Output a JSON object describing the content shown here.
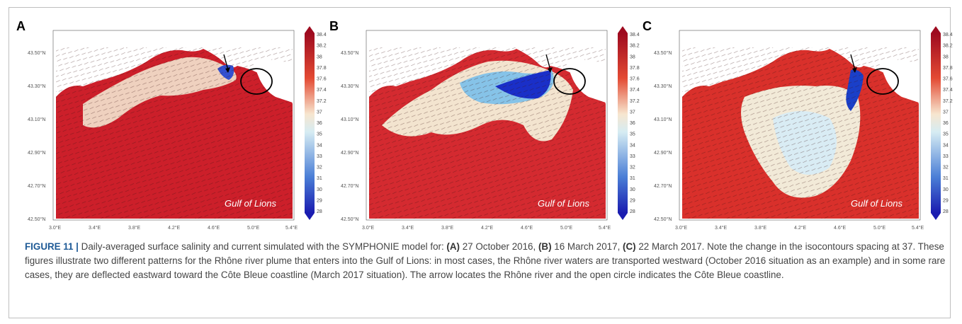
{
  "panels": [
    {
      "letter": "A",
      "region_label": "Gulf of Lions"
    },
    {
      "letter": "B",
      "region_label": "Gulf of Lions"
    },
    {
      "letter": "C",
      "region_label": "Gulf of Lions"
    }
  ],
  "lat_ticks": [
    "43.50°N",
    "43.30°N",
    "43.10°N",
    "42.90°N",
    "42.70°N",
    "42.50°N"
  ],
  "lon_ticks": [
    "3.0°E",
    "3.4°E",
    "3.8°E",
    "4.2°E",
    "4.6°E",
    "5.0°E",
    "5.4°E"
  ],
  "colorbar_ticks": [
    "38.4",
    "38.2",
    "38",
    "37.8",
    "37.6",
    "37.4",
    "37.2",
    "37",
    "36",
    "35",
    "34",
    "33",
    "32",
    "31",
    "30",
    "29",
    "28"
  ],
  "colors": {
    "saline": "#c8102e",
    "fresh": "#1030c0",
    "mid": "#f2e8d5",
    "caption_label": "#1e5a96"
  },
  "caption": {
    "label": "FIGURE 11 |",
    "s1": " Daily-averaged surface salinity and current simulated with the SYMPHONIE model for: ",
    "a": "(A)",
    "a_txt": " 27 October 2016, ",
    "b": "(B)",
    "b_txt": " 16 March 2017, ",
    "c": "(C)",
    "c_txt": " 22 March 2017.",
    "rest": " Note the change in the isocontours spacing at 37. These figures illustrate two different patterns for the Rhône river plume that enters into the Gulf of Lions: in most cases, the Rhône river waters are transported westward (October 2016 situation as an example) and in some rare cases, they are deflected eastward toward the Côte Bleue coastline (March 2017 situation). The arrow locates the Rhône river and the open circle indicates the Côte Bleue coastline."
  }
}
